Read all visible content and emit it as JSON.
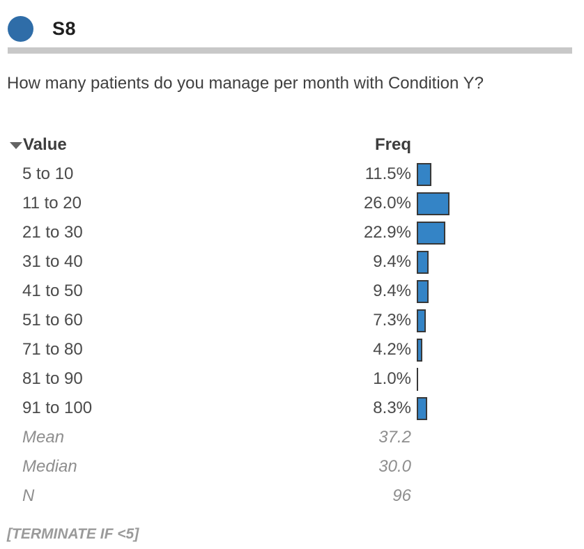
{
  "header": {
    "title": "S8",
    "badge_color": "#2f6da8"
  },
  "question": "How many patients do you manage per month with Condition Y?",
  "table": {
    "columns": {
      "value": "Value",
      "freq": "Freq"
    },
    "rows": [
      {
        "value": "5 to 10",
        "freq": "11.5%",
        "pct": 11.5
      },
      {
        "value": "11 to 20",
        "freq": "26.0%",
        "pct": 26.0
      },
      {
        "value": "21 to 30",
        "freq": "22.9%",
        "pct": 22.9
      },
      {
        "value": "31 to 40",
        "freq": "9.4%",
        "pct": 9.4
      },
      {
        "value": "41 to 50",
        "freq": "9.4%",
        "pct": 9.4
      },
      {
        "value": "51 to 60",
        "freq": "7.3%",
        "pct": 7.3
      },
      {
        "value": "71 to 80",
        "freq": "4.2%",
        "pct": 4.2
      },
      {
        "value": "81 to 90",
        "freq": "1.0%",
        "pct": 1.0
      },
      {
        "value": "91 to 100",
        "freq": "8.3%",
        "pct": 8.3
      }
    ],
    "stats": [
      {
        "label": "Mean",
        "value": "37.2"
      },
      {
        "label": "Median",
        "value": "30.0"
      },
      {
        "label": "N",
        "value": "96"
      }
    ]
  },
  "footer": {
    "note": "[TERMINATE IF <5]"
  },
  "colors": {
    "bar_fill": "#3484c6",
    "bar_border": "#383838",
    "divider": "#c8c8c8"
  },
  "chart_data": {
    "type": "bar",
    "orientation": "horizontal",
    "title": "How many patients do you manage per month with Condition Y?",
    "categories": [
      "5 to 10",
      "11 to 20",
      "21 to 30",
      "31 to 40",
      "41 to 50",
      "51 to 60",
      "71 to 80",
      "81 to 90",
      "91 to 100"
    ],
    "values": [
      11.5,
      26.0,
      22.9,
      9.4,
      9.4,
      7.3,
      4.2,
      1.0,
      8.3
    ],
    "value_labels": [
      "11.5%",
      "26.0%",
      "22.9%",
      "9.4%",
      "9.4%",
      "7.3%",
      "4.2%",
      "1.0%",
      "8.3%"
    ],
    "xlabel": "Freq",
    "ylabel": "Value",
    "xlim": [
      0,
      26
    ],
    "grid": false,
    "legend": false,
    "stats": {
      "mean": 37.2,
      "median": 30.0,
      "n": 96
    }
  }
}
